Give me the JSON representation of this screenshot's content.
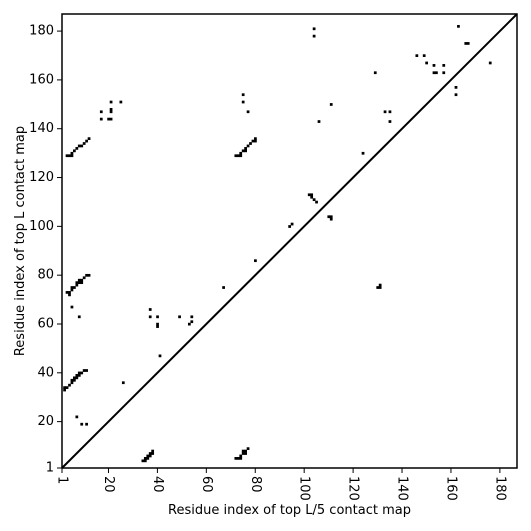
{
  "chart_data": {
    "type": "heatmap",
    "xlabel": "Residue index of top L/5 contact map",
    "ylabel": "Residue index of top L contact map",
    "xlim": [
      1,
      187
    ],
    "ylim": [
      1,
      187
    ],
    "xticks": [
      1,
      20,
      40,
      60,
      80,
      100,
      120,
      140,
      160,
      180
    ],
    "yticks": [
      1,
      20,
      40,
      60,
      80,
      100,
      120,
      140,
      160,
      180
    ],
    "xtick_labels": [
      "1",
      "20",
      "40",
      "60",
      "80",
      "100",
      "120",
      "140",
      "160",
      "180"
    ],
    "ytick_labels": [
      "1",
      "20",
      "40",
      "60",
      "80",
      "100",
      "120",
      "140",
      "160",
      "180"
    ],
    "diagonal": true,
    "cell_color": "#000000",
    "upper_triangle_contacts": [
      [
        3,
        129
      ],
      [
        4,
        129
      ],
      [
        5,
        129
      ],
      [
        5,
        130
      ],
      [
        6,
        131
      ],
      [
        7,
        132
      ],
      [
        8,
        133
      ],
      [
        9,
        133
      ],
      [
        10,
        134
      ],
      [
        11,
        135
      ],
      [
        12,
        136
      ],
      [
        3,
        73
      ],
      [
        4,
        73
      ],
      [
        4,
        72
      ],
      [
        5,
        74
      ],
      [
        5,
        75
      ],
      [
        6,
        75
      ],
      [
        7,
        76
      ],
      [
        7,
        77
      ],
      [
        8,
        77
      ],
      [
        8,
        78
      ],
      [
        9,
        77
      ],
      [
        9,
        78
      ],
      [
        10,
        79
      ],
      [
        11,
        80
      ],
      [
        12,
        80
      ],
      [
        5,
        67
      ],
      [
        8,
        63
      ],
      [
        2,
        33
      ],
      [
        2,
        34
      ],
      [
        3,
        34
      ],
      [
        4,
        35
      ],
      [
        5,
        36
      ],
      [
        5,
        37
      ],
      [
        6,
        37
      ],
      [
        6,
        38
      ],
      [
        7,
        38
      ],
      [
        7,
        39
      ],
      [
        8,
        39
      ],
      [
        8,
        40
      ],
      [
        9,
        40
      ],
      [
        10,
        41
      ],
      [
        11,
        41
      ],
      [
        7,
        22
      ],
      [
        9,
        19
      ],
      [
        11,
        19
      ],
      [
        17,
        144
      ],
      [
        17,
        147
      ],
      [
        20,
        144
      ],
      [
        21,
        144
      ],
      [
        21,
        147
      ],
      [
        21,
        148
      ],
      [
        21,
        151
      ],
      [
        25,
        151
      ],
      [
        26,
        36
      ],
      [
        37,
        66
      ],
      [
        37,
        63
      ],
      [
        40,
        63
      ],
      [
        40,
        60
      ],
      [
        40,
        59
      ],
      [
        41,
        47
      ],
      [
        49,
        63
      ],
      [
        53,
        60
      ],
      [
        54,
        61
      ],
      [
        54,
        63
      ],
      [
        67,
        75
      ],
      [
        72,
        129
      ],
      [
        73,
        129
      ],
      [
        74,
        129
      ],
      [
        74,
        130
      ],
      [
        75,
        131
      ],
      [
        76,
        131
      ],
      [
        76,
        132
      ],
      [
        77,
        133
      ],
      [
        78,
        134
      ],
      [
        79,
        135
      ],
      [
        80,
        136
      ],
      [
        80,
        135
      ],
      [
        75,
        154
      ],
      [
        75,
        151
      ],
      [
        77,
        147
      ],
      [
        80,
        86
      ],
      [
        94,
        100
      ],
      [
        95,
        101
      ],
      [
        102,
        113
      ],
      [
        103,
        113
      ],
      [
        103,
        112
      ],
      [
        104,
        111
      ],
      [
        105,
        110
      ],
      [
        104,
        178
      ],
      [
        104,
        181
      ],
      [
        106,
        143
      ],
      [
        110,
        104
      ],
      [
        111,
        104
      ],
      [
        111,
        103
      ],
      [
        111,
        150
      ],
      [
        124,
        130
      ],
      [
        129,
        163
      ],
      [
        133,
        147
      ],
      [
        135,
        147
      ],
      [
        135,
        143
      ],
      [
        146,
        170
      ],
      [
        149,
        170
      ],
      [
        150,
        167
      ],
      [
        153,
        166
      ],
      [
        153,
        163
      ],
      [
        154,
        163
      ],
      [
        157,
        166
      ],
      [
        157,
        163
      ],
      [
        162,
        157
      ],
      [
        162,
        154
      ],
      [
        163,
        182
      ],
      [
        166,
        175
      ],
      [
        167,
        175
      ],
      [
        176,
        167
      ]
    ],
    "lower_triangle_contacts": [
      [
        34,
        4
      ],
      [
        35,
        4
      ],
      [
        35,
        5
      ],
      [
        36,
        5
      ],
      [
        36,
        6
      ],
      [
        37,
        6
      ],
      [
        37,
        7
      ],
      [
        38,
        7
      ],
      [
        38,
        8
      ],
      [
        72,
        5
      ],
      [
        73,
        5
      ],
      [
        74,
        5
      ],
      [
        74,
        6
      ],
      [
        75,
        7
      ],
      [
        75,
        8
      ],
      [
        76,
        7
      ],
      [
        76,
        8
      ],
      [
        77,
        9
      ],
      [
        130,
        75
      ],
      [
        131,
        75
      ],
      [
        131,
        76
      ]
    ]
  }
}
